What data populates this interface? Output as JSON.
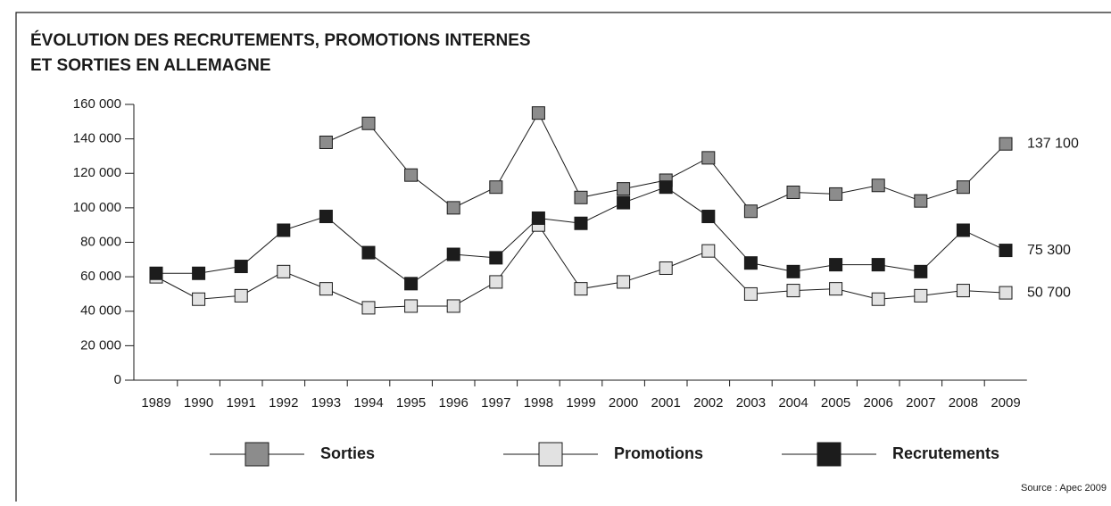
{
  "chart_data": {
    "type": "line",
    "title": [
      "ÉVOLUTION DES RECRUTEMENTS, PROMOTIONS INTERNES",
      "ET SORTIES EN ALLEMAGNE"
    ],
    "source": "Source : Apec 2009",
    "categories": [
      "1989",
      "1990",
      "1991",
      "1992",
      "1993",
      "1994",
      "1995",
      "1996",
      "1997",
      "1998",
      "1999",
      "2000",
      "2001",
      "2002",
      "2003",
      "2004",
      "2005",
      "2006",
      "2007",
      "2008",
      "2009"
    ],
    "ylim": [
      0,
      160000
    ],
    "yticks": [
      0,
      {
        "value": 20000,
        "label": "20 000"
      },
      {
        "value": 40000,
        "label": "40 000"
      },
      {
        "value": 60000,
        "label": "60 000"
      },
      {
        "value": 80000,
        "label": "80 000"
      },
      {
        "value": 100000,
        "label": "100 000"
      },
      {
        "value": 120000,
        "label": "120 000"
      },
      {
        "value": 140000,
        "label": "140 000"
      },
      {
        "value": 160000,
        "label": "160 000"
      }
    ],
    "series": [
      {
        "name": "Sorties",
        "color": "#8c8c8c",
        "last_label": "137 100",
        "values": [
          null,
          null,
          null,
          null,
          138000,
          149000,
          119000,
          100000,
          112000,
          155000,
          106000,
          111000,
          116000,
          129000,
          98000,
          109000,
          108000,
          113000,
          104000,
          112000,
          137100
        ]
      },
      {
        "name": "Promotions",
        "color": "#e2e2e2",
        "last_label": "50 700",
        "values": [
          60000,
          47000,
          49000,
          63000,
          53000,
          42000,
          43000,
          43000,
          57000,
          90000,
          53000,
          57000,
          65000,
          75000,
          50000,
          52000,
          53000,
          47000,
          49000,
          52000,
          50700
        ]
      },
      {
        "name": "Recrutements",
        "color": "#1c1c1c",
        "last_label": "75 300",
        "values": [
          62000,
          62000,
          66000,
          87000,
          95000,
          74000,
          56000,
          73000,
          71000,
          94000,
          91000,
          103000,
          112000,
          95000,
          68000,
          63000,
          67000,
          67000,
          63000,
          87000,
          75300
        ]
      }
    ]
  }
}
